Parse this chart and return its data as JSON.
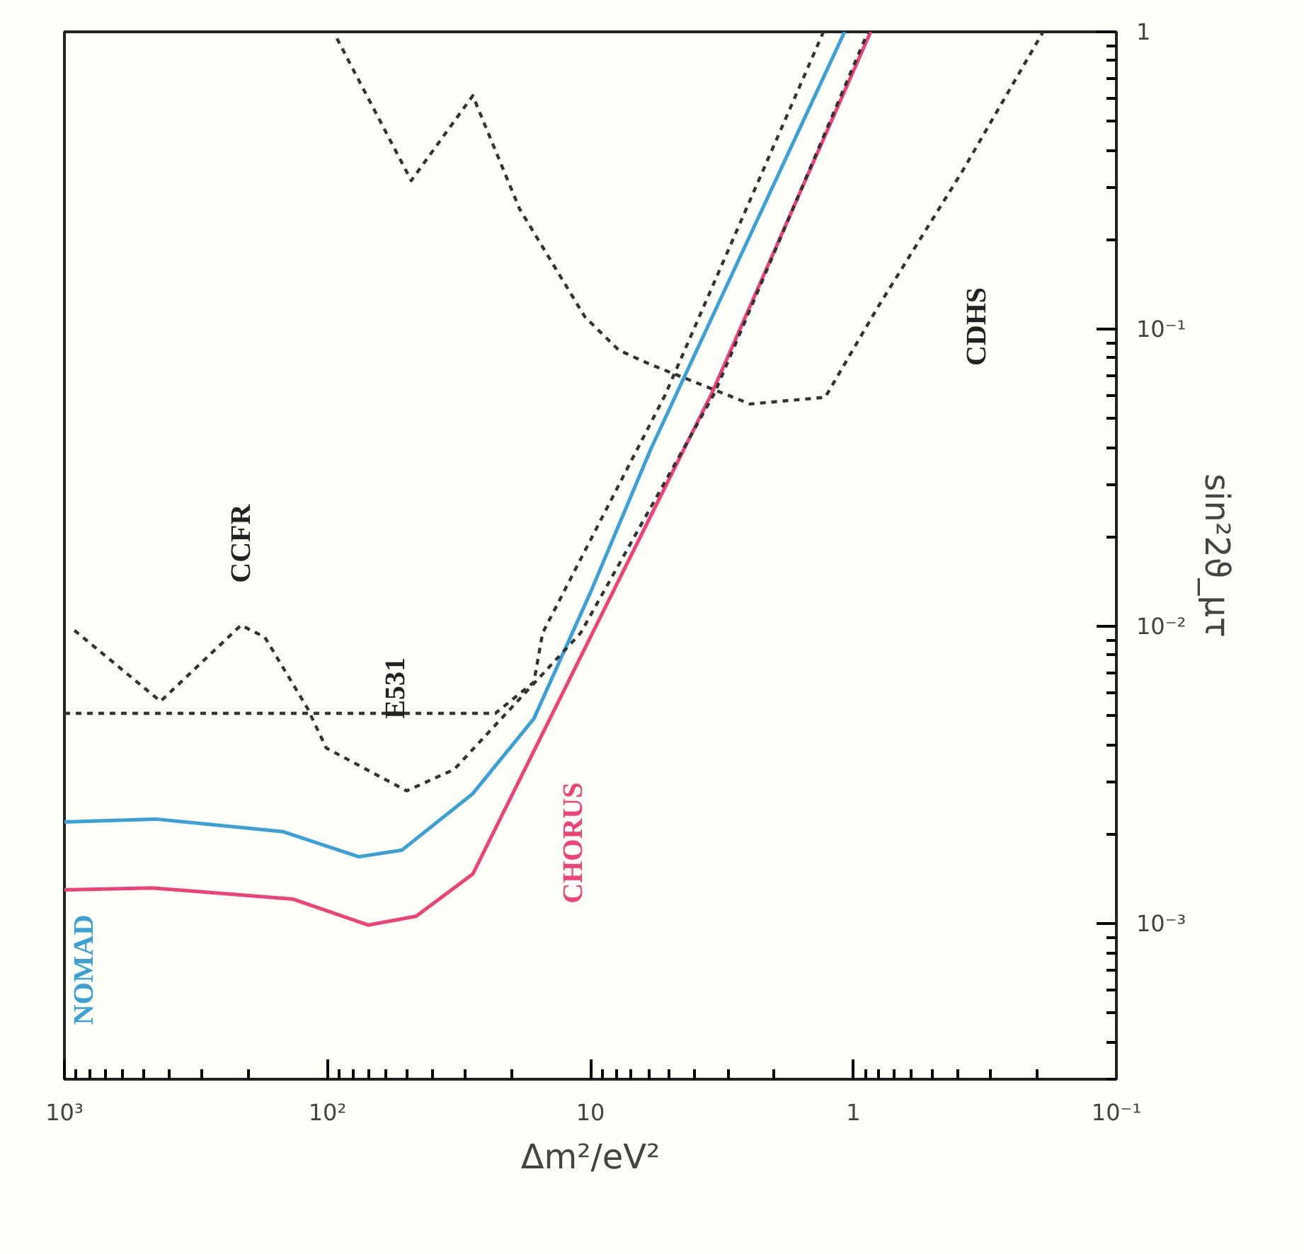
{
  "chart_data": {
    "type": "line",
    "xlabel": "Δm²/eV²",
    "ylabel": "sin²2ϑ_μτ",
    "log": "xy",
    "grid": false,
    "xlim": [
      1000,
      0.1
    ],
    "xticks": [
      {
        "value": 1000,
        "label": "10³"
      },
      {
        "value": 100,
        "label": "10²"
      },
      10,
      1,
      {
        "value": 0.1,
        "label": "10⁻¹"
      }
    ],
    "ylim": [
      0.0003,
      1
    ],
    "yticks": [
      {
        "value": 0.001,
        "label": "10⁻³"
      },
      {
        "value": 0.01,
        "label": "10⁻²"
      },
      {
        "value": 0.1,
        "label": "10⁻¹"
      },
      1
    ],
    "series": [
      {
        "name": "NOMAD",
        "color": "#3aa0d8",
        "line_style": "solid",
        "x": [
          1000,
          450,
          147,
          76,
          52,
          28,
          16.4,
          10,
          5.9,
          1.08
        ],
        "values": [
          0.0022,
          0.00225,
          0.00204,
          0.00168,
          0.00177,
          0.00274,
          0.0049,
          0.013,
          0.0394,
          1
        ]
      },
      {
        "name": "CHORUS",
        "color": "#f0407a",
        "line_style": "solid",
        "x": [
          1000,
          464,
          135,
          70,
          46,
          28,
          10,
          3.45,
          0.86
        ],
        "values": [
          0.0013,
          0.00132,
          0.00121,
          0.00099,
          0.00106,
          0.00147,
          0.0092,
          0.061,
          1
        ]
      },
      {
        "name": "CCFR",
        "color": "#333333",
        "line_style": "dashed",
        "x": [
          916,
          431,
          213,
          173,
          119,
          101,
          50,
          33,
          18.6,
          10.9,
          3.37,
          0.88
        ],
        "values": [
          0.0097,
          0.0056,
          0.0101,
          0.0092,
          0.0053,
          0.0039,
          0.0028,
          0.0033,
          0.0057,
          0.0095,
          0.061,
          1
        ]
      },
      {
        "name": "E531",
        "color": "#333333",
        "line_style": "dashed",
        "x": [
          1000,
          23,
          16.4,
          15.2,
          5.2,
          1.3
        ],
        "values": [
          0.0051,
          0.0051,
          0.0065,
          0.0095,
          0.06,
          1
        ]
      },
      {
        "name": "CDHS",
        "color": "#333333",
        "line_style": "dashed",
        "x": [
          92,
          48,
          28,
          18.6,
          10.5,
          7.8,
          5.9,
          2.47,
          1.28,
          0.81,
          0.385,
          0.19
        ],
        "values": [
          0.95,
          0.316,
          0.61,
          0.254,
          0.11,
          0.085,
          0.076,
          0.056,
          0.059,
          0.118,
          0.34,
          1
        ]
      }
    ]
  }
}
